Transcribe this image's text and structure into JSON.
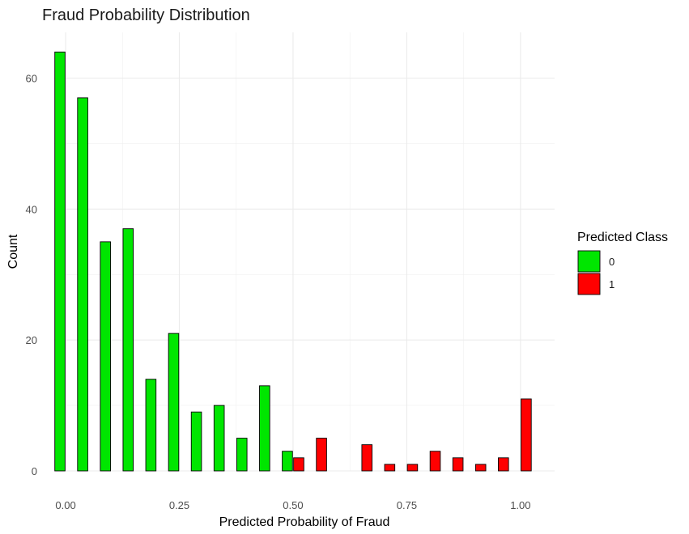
{
  "chart_data": {
    "type": "bar",
    "title": "Fraud Probability Distribution",
    "xlabel": "Predicted Probability of Fraud",
    "ylabel": "Count",
    "xlim": [
      -0.025,
      1.075
    ],
    "ylim": [
      0,
      67
    ],
    "x_ticks": [
      {
        "value": 0.0,
        "label": "0.00"
      },
      {
        "value": 0.25,
        "label": "0.25"
      },
      {
        "value": 0.5,
        "label": "0.50"
      },
      {
        "value": 0.75,
        "label": "0.75"
      },
      {
        "value": 1.0,
        "label": "1.00"
      }
    ],
    "y_ticks": [
      {
        "value": 0,
        "label": "0"
      },
      {
        "value": 20,
        "label": "20"
      },
      {
        "value": 40,
        "label": "40"
      },
      {
        "value": 60,
        "label": "60"
      }
    ],
    "grid": true,
    "bin_width": 0.05,
    "legend": {
      "title": "Predicted Class",
      "position": "right",
      "entries": [
        {
          "label": "0",
          "color": "#00e600"
        },
        {
          "label": "1",
          "color": "#ff0000"
        }
      ]
    },
    "series": [
      {
        "name": "0",
        "color": "#00e600",
        "bins": [
          {
            "x": 0.0,
            "count": 64
          },
          {
            "x": 0.05,
            "count": 57
          },
          {
            "x": 0.1,
            "count": 35
          },
          {
            "x": 0.15,
            "count": 37
          },
          {
            "x": 0.2,
            "count": 14
          },
          {
            "x": 0.25,
            "count": 21
          },
          {
            "x": 0.3,
            "count": 9
          },
          {
            "x": 0.35,
            "count": 10
          },
          {
            "x": 0.4,
            "count": 5
          },
          {
            "x": 0.45,
            "count": 13
          },
          {
            "x": 0.5,
            "count": 3
          }
        ]
      },
      {
        "name": "1",
        "color": "#ff0000",
        "bins": [
          {
            "x": 0.5,
            "count": 2
          },
          {
            "x": 0.55,
            "count": 5
          },
          {
            "x": 0.65,
            "count": 4
          },
          {
            "x": 0.7,
            "count": 1
          },
          {
            "x": 0.75,
            "count": 1
          },
          {
            "x": 0.8,
            "count": 3
          },
          {
            "x": 0.85,
            "count": 2
          },
          {
            "x": 0.9,
            "count": 1
          },
          {
            "x": 0.95,
            "count": 2
          },
          {
            "x": 1.0,
            "count": 11
          }
        ]
      }
    ]
  }
}
